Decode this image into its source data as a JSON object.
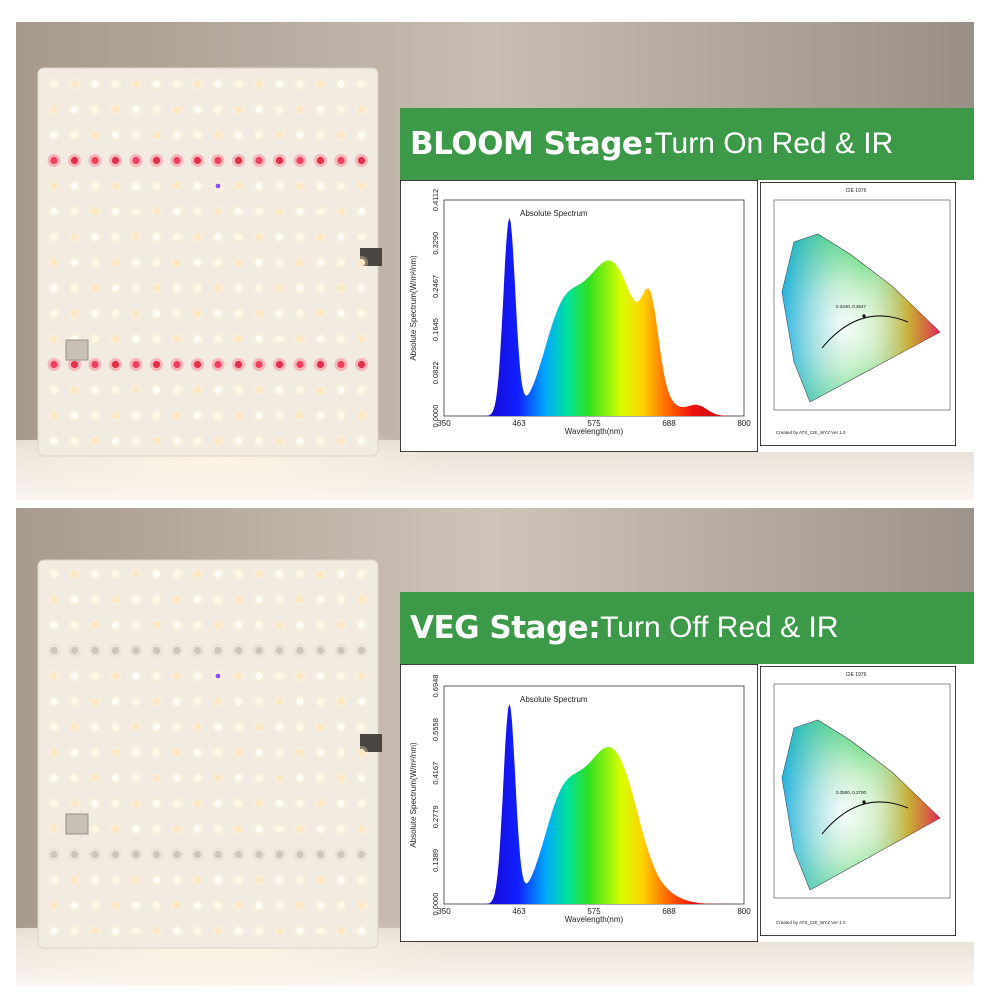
{
  "panels": {
    "bloom": {
      "stage": "BLOOM Stage",
      "colon": ":",
      "action": " Turn On Red & IR",
      "spectrum": {
        "title": "Absolute Spectrum",
        "xlabel": "Wavelength(nm)",
        "ylabel": "Absolute Spectrum(W/m²/nm)",
        "xticks": [
          "350",
          "463",
          "575",
          "688",
          "800"
        ],
        "yticks": [
          "0.0000",
          "0.0822",
          "0.1645",
          "0.2467",
          "0.3290",
          "0.4112"
        ]
      },
      "cie": {
        "title": "CIE 1976",
        "point": "0.3440, 0.3647",
        "credit": "Created by ATS_CIE_WYZ Ver 1.0"
      }
    },
    "veg": {
      "stage": "VEG Stage",
      "colon": ":",
      "action": " Turn Off Red & IR",
      "spectrum": {
        "title": "Absolute Spectrum",
        "xlabel": "Wavelength(nm)",
        "ylabel": "Absolute Spectrum(W/m²/nm)",
        "xticks": [
          "350",
          "463",
          "575",
          "688",
          "800"
        ],
        "yticks": [
          "0.0000",
          "0.1389",
          "0.2779",
          "0.4167",
          "0.5558",
          "0.6948"
        ]
      },
      "cie": {
        "title": "CIE 1976",
        "point": "0.3500, 0.3700",
        "credit": "Created by ATS_CIE_WYZ Ver 1.0"
      }
    }
  },
  "colors": {
    "banner": "#3b9948",
    "red_led": "#e0304a"
  }
}
